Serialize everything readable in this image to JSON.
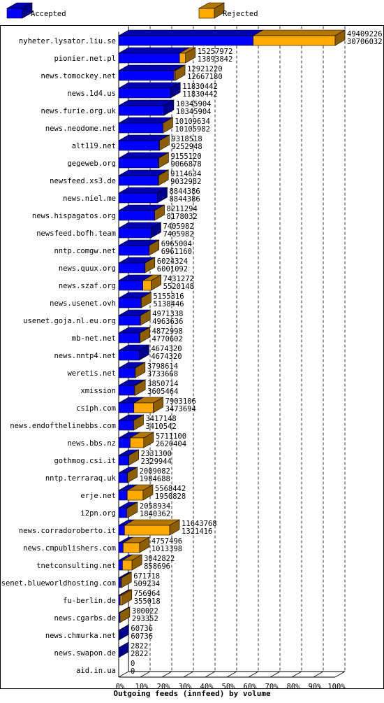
{
  "chart_data": {
    "type": "bar3d_stacked_horizontal",
    "title": "Outgoing feeds (innfeed) by volume",
    "categories": [
      "nyheter.lysator.liu.se",
      "pionier.net.pl",
      "news.tomockey.net",
      "news.1d4.us",
      "news.furie.org.uk",
      "news.neodome.net",
      "alt119.net",
      "gegeweb.org",
      "newsfeed.xs3.de",
      "news.niel.me",
      "news.hispagatos.org",
      "newsfeed.bofh.team",
      "nntp.comgw.net",
      "news.quux.org",
      "news.szaf.org",
      "news.usenet.ovh",
      "usenet.goja.nl.eu.org",
      "mb-net.net",
      "news.nntp4.net",
      "weretis.net",
      "xmission",
      "csiph.com",
      "news.endofthelinebbs.com",
      "news.bbs.nz",
      "gothmog.csi.it",
      "nntp.terraraq.uk",
      "erje.net",
      "i2pn.org",
      "news.corradoroberto.it",
      "news.cmpublishers.com",
      "tnetconsulting.net",
      "usenet.blueworldhosting.com",
      "fu-berlin.de",
      "news.cgarbs.de",
      "news.chmurka.net",
      "news.swapon.de",
      "aid.in.ua"
    ],
    "totals": [
      49409226,
      15257972,
      12921220,
      11830442,
      10345904,
      10109634,
      9318518,
      9155120,
      9114634,
      8844386,
      8211294,
      7405982,
      6965004,
      6024324,
      7431272,
      5155316,
      4971338,
      4872998,
      4674320,
      3798614,
      3850714,
      7903106,
      3417148,
      5711100,
      2331300,
      2009082,
      5568442,
      2058934,
      11643768,
      4757496,
      3042822,
      671718,
      756964,
      300022,
      60736,
      2822,
      0
    ],
    "series": [
      {
        "name": "Accepted",
        "color": "#0000ff",
        "values": [
          30706032,
          13893842,
          12667180,
          11830442,
          10345904,
          10105982,
          9252948,
          9066878,
          9032982,
          8844386,
          8178032,
          7405982,
          6961160,
          6001092,
          5520148,
          5138446,
          4963636,
          4770602,
          4674320,
          3733668,
          3605464,
          3473694,
          3410542,
          2620404,
          2329944,
          1984688,
          1950828,
          1840362,
          1321416,
          1013398,
          858696,
          509234,
          355018,
          293352,
          60736,
          2822,
          0
        ]
      },
      {
        "name": "Rejected",
        "color": "#ffaa00",
        "values": [
          18703194,
          1364130,
          254040,
          0,
          0,
          3652,
          65570,
          88242,
          81652,
          0,
          33262,
          0,
          3844,
          23232,
          1911124,
          16870,
          7702,
          102396,
          0,
          64946,
          245250,
          4429412,
          6606,
          3090696,
          1356,
          24394,
          3617614,
          218572,
          10322352,
          3744098,
          2184126,
          162484,
          401946,
          6670,
          0,
          0,
          0
        ]
      }
    ],
    "xlim": [
      0,
      49409226
    ],
    "xticks": [
      {
        "value": 0,
        "label": "0%"
      },
      {
        "value": 4940922.6,
        "label": "10%"
      },
      {
        "value": 9881845.2,
        "label": "20%"
      },
      {
        "value": 14822767.8,
        "label": "30%"
      },
      {
        "value": 19763690.4,
        "label": "40%"
      },
      {
        "value": 24704613,
        "label": "50%"
      },
      {
        "value": 29645535.6,
        "label": "60%"
      },
      {
        "value": 34586458.2,
        "label": "70%"
      },
      {
        "value": 39527380.8,
        "label": "80%"
      },
      {
        "value": 44468303.4,
        "label": "90%"
      },
      {
        "value": 49409226,
        "label": "100%"
      }
    ],
    "grid": true
  }
}
